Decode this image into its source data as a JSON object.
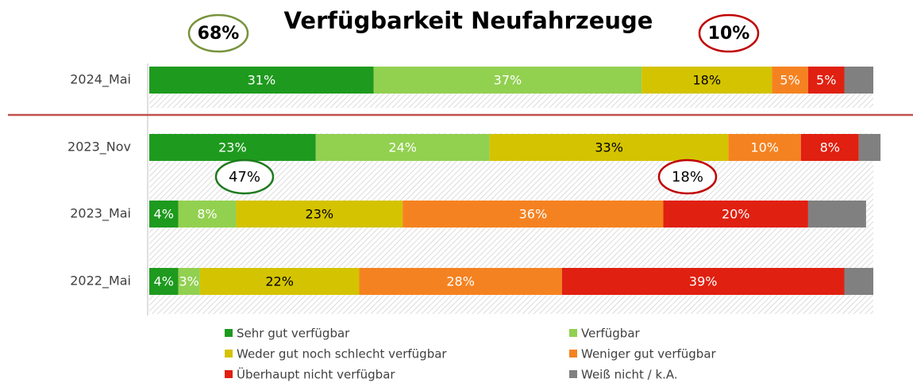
{
  "chart_data": {
    "type": "stacked-bar-horizontal",
    "title": "Verfügbarkeit Neufahrzeuge",
    "categories": [
      "2024_Mai",
      "2023_Nov",
      "2023_Mai",
      "2022_Mai"
    ],
    "xlim": [
      0,
      100
    ],
    "series": [
      {
        "name": "Sehr gut verfügbar",
        "color": "#1e9a1e",
        "label_color": "#ffffff",
        "values": [
          31,
          23,
          4,
          4
        ],
        "value_labels": [
          "31%",
          "23%",
          "4%",
          "4%"
        ]
      },
      {
        "name": "Verfügbar",
        "color": "#92d050",
        "label_color": "#ffffff",
        "values": [
          37,
          24,
          8,
          3
        ],
        "value_labels": [
          "37%",
          "24%",
          "8%",
          "3%"
        ]
      },
      {
        "name": "Weder gut noch schlecht verfügbar",
        "color": "#d4c300",
        "label_color": "#000000",
        "values": [
          18,
          33,
          23,
          22
        ],
        "value_labels": [
          "18%",
          "33%",
          "23%",
          "22%"
        ]
      },
      {
        "name": "Weniger gut verfügbar",
        "color": "#f58220",
        "label_color": "#ffffff",
        "values": [
          5,
          10,
          36,
          28
        ],
        "value_labels": [
          "5%",
          "10%",
          "36%",
          "28%"
        ]
      },
      {
        "name": "Überhaupt nicht verfügbar",
        "color": "#e02010",
        "label_color": "#ffffff",
        "values": [
          5,
          8,
          20,
          39
        ],
        "value_labels": [
          "5%",
          "8%",
          "20%",
          "39%"
        ]
      },
      {
        "name": "Weiß nicht / k.A.",
        "color": "#808080",
        "label_color": "#ffffff",
        "values": [
          4,
          3,
          8,
          4
        ],
        "value_labels": [
          null,
          null,
          null,
          null
        ]
      }
    ],
    "annotations": [
      {
        "text": "68%",
        "color": "#77933c"
      },
      {
        "text": "10%",
        "color": "#c00000"
      },
      {
        "text": "47%",
        "color": "#1e7a1e"
      },
      {
        "text": "18%",
        "color": "#c00000"
      }
    ]
  }
}
